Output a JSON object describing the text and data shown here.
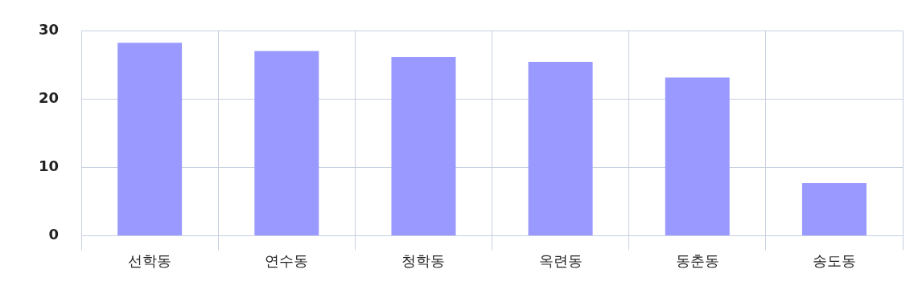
{
  "chart_data": {
    "type": "bar",
    "categories": [
      "선학동",
      "연수동",
      "청학동",
      "옥련동",
      "동춘동",
      "송도동"
    ],
    "values": [
      28.3,
      27.1,
      26.2,
      25.5,
      23.2,
      7.7
    ],
    "color": "#9999ff",
    "ylim": [
      0,
      30
    ],
    "yticks": [
      0,
      10,
      20,
      30
    ],
    "grid": true
  }
}
